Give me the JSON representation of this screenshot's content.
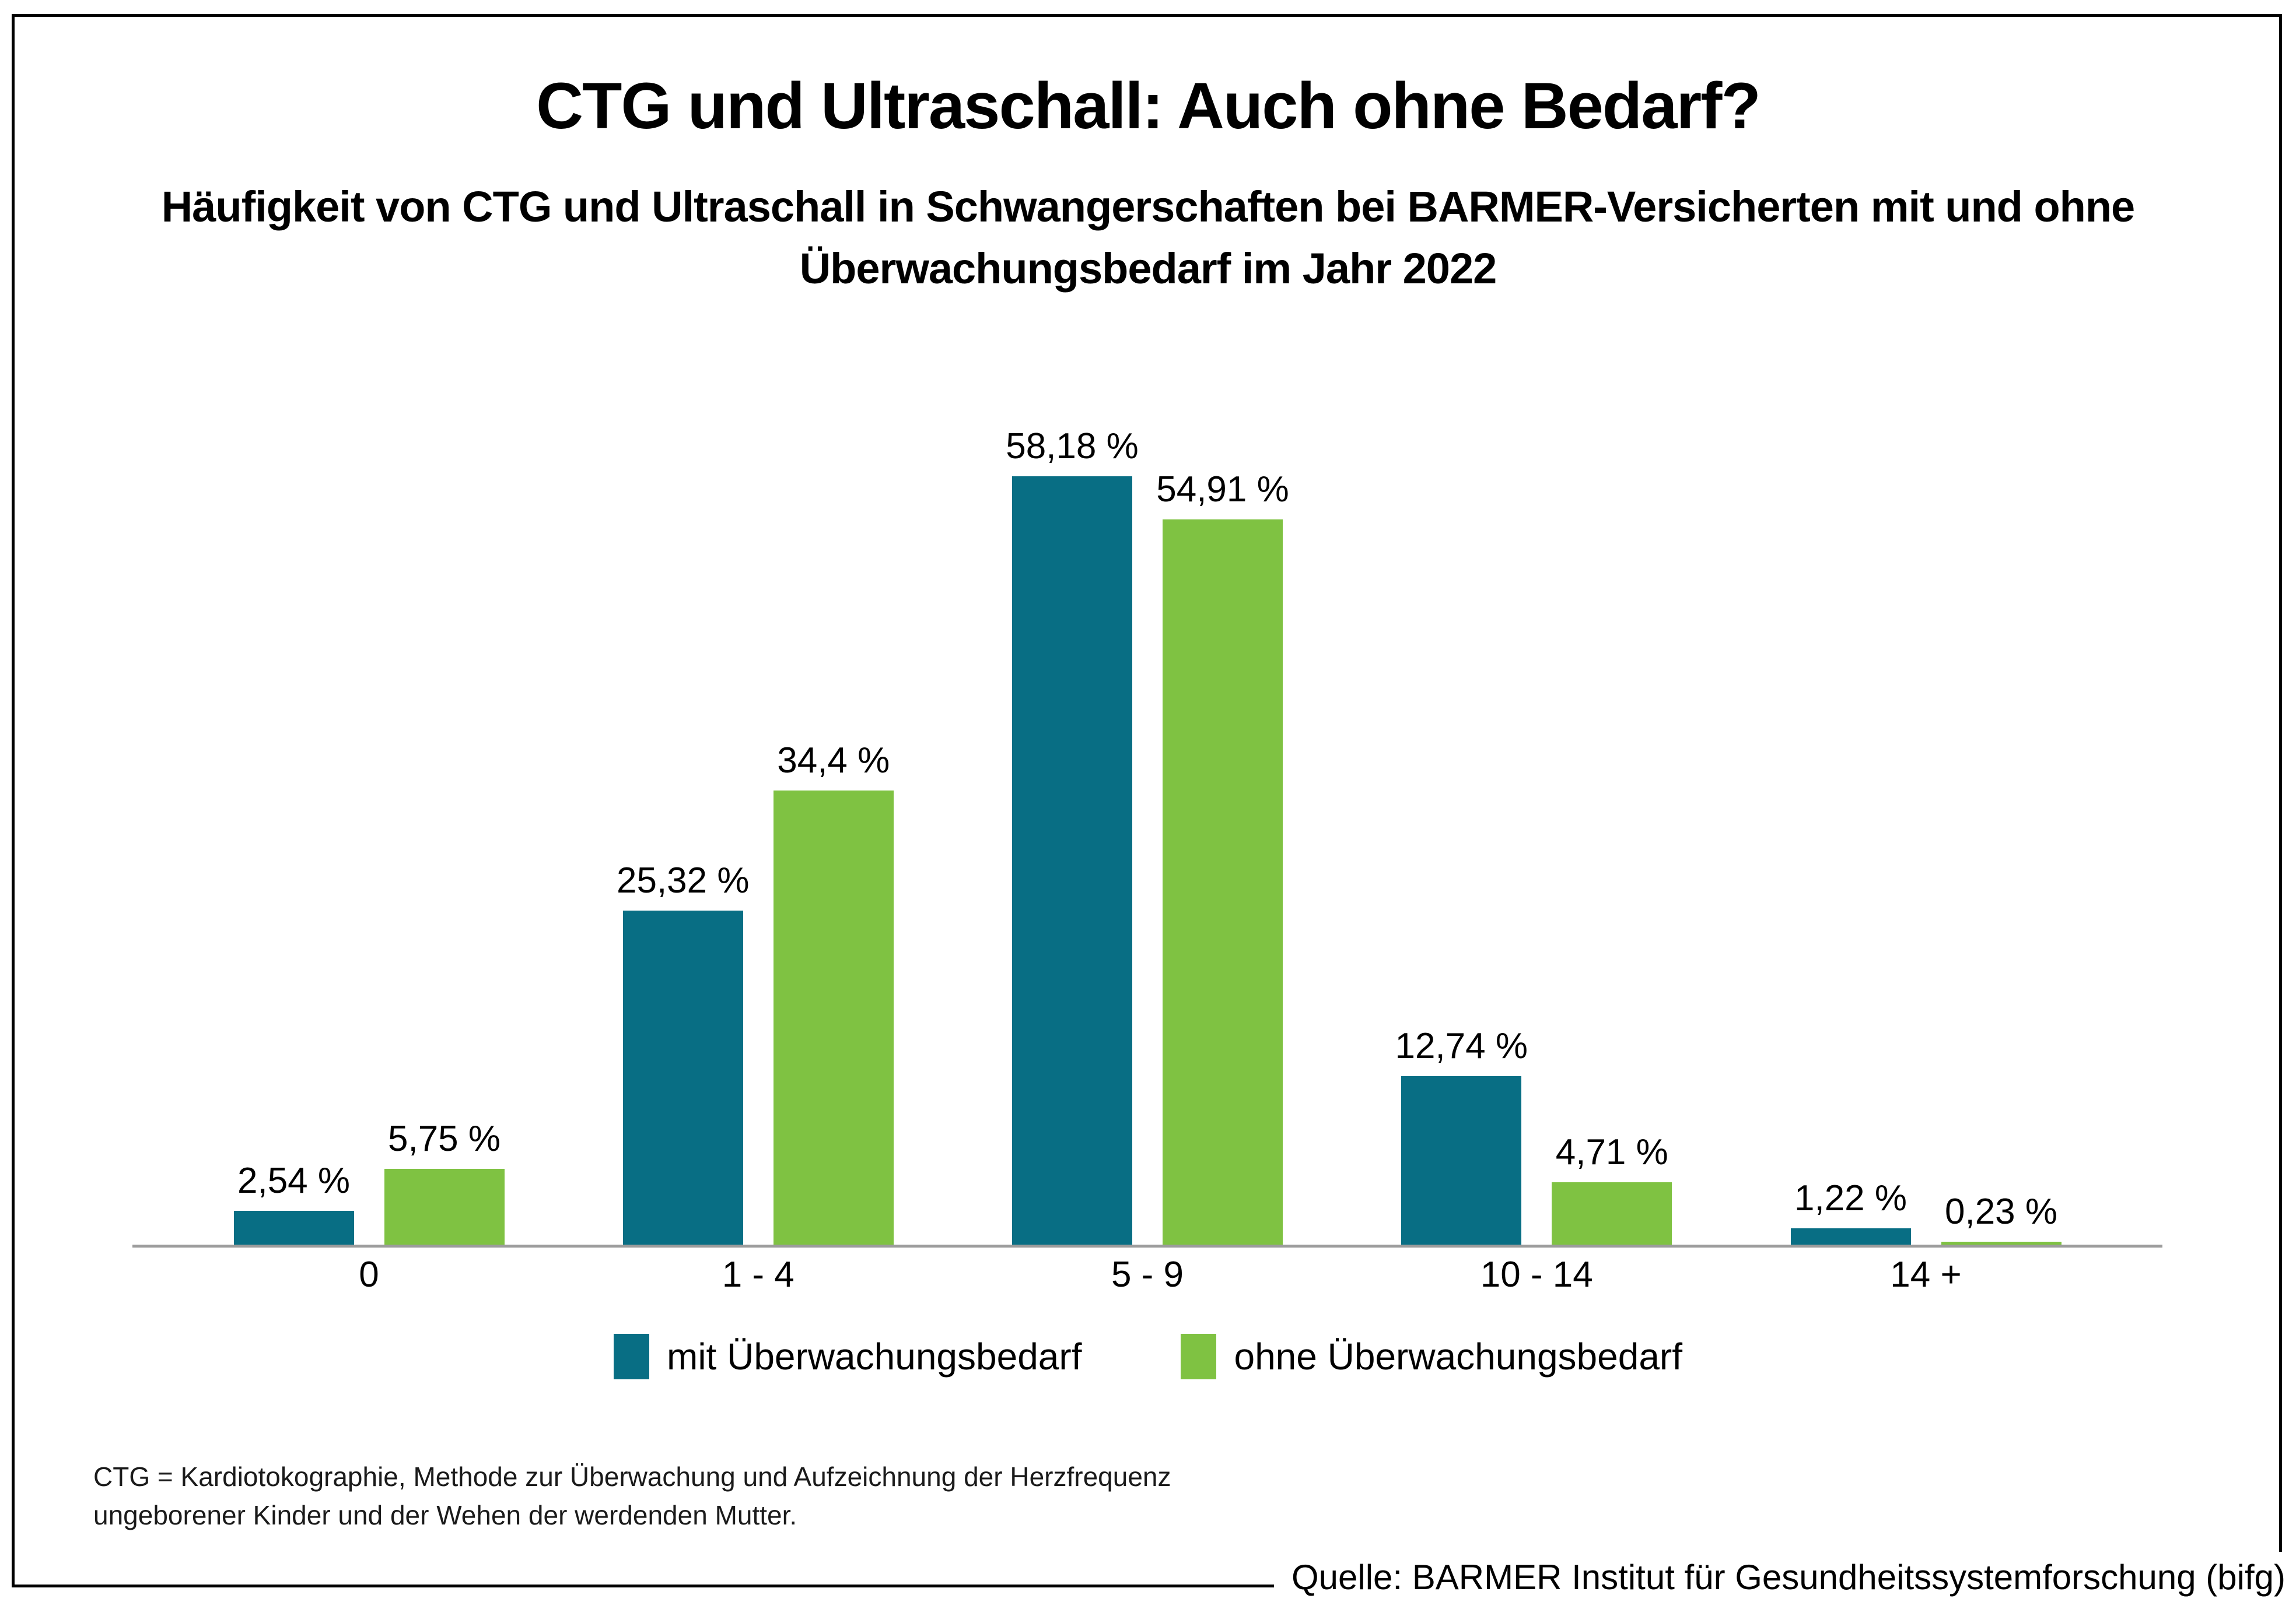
{
  "title": "CTG und Ultraschall: Auch ohne Bedarf?",
  "subtitle": {
    "line1": "Häufigkeit von CTG und Ultraschall in Schwangerschaften bei BARMER-Versicherten mit und ohne",
    "line2": "Überwachungsbedarf im Jahr 2022"
  },
  "chart_data": {
    "type": "bar",
    "categories": [
      "0",
      "1 - 4",
      "5 - 9",
      "10 - 14",
      "14 +"
    ],
    "series": [
      {
        "name": "mit Überwachungsbedarf",
        "color": "#086e84",
        "values": [
          2.54,
          25.32,
          58.18,
          12.74,
          1.22
        ],
        "labels": [
          "2,54 %",
          "25,32 %",
          "58,18 %",
          "12,74 %",
          "1,22 %"
        ]
      },
      {
        "name": "ohne Überwachungsbedarf",
        "color": "#7fc242",
        "values": [
          5.75,
          34.4,
          54.91,
          4.71,
          0.23
        ],
        "labels": [
          "5,75 %",
          "34,4 %",
          "54,91 %",
          "4,71 %",
          "0,23 %"
        ]
      }
    ],
    "unit": "%",
    "ylim": [
      0,
      60
    ],
    "grid": false,
    "legend_position": "bottom",
    "axis_color": "#9c9c9c"
  },
  "footnote": {
    "line1": "CTG = Kardiotokographie, Methode zur Überwachung und Aufzeichnung der Herzfrequenz",
    "line2": "ungeborener Kinder und der Wehen der werdenden Mutter."
  },
  "source": "Quelle: BARMER Institut für Gesundheitssystemforschung (bifg)"
}
